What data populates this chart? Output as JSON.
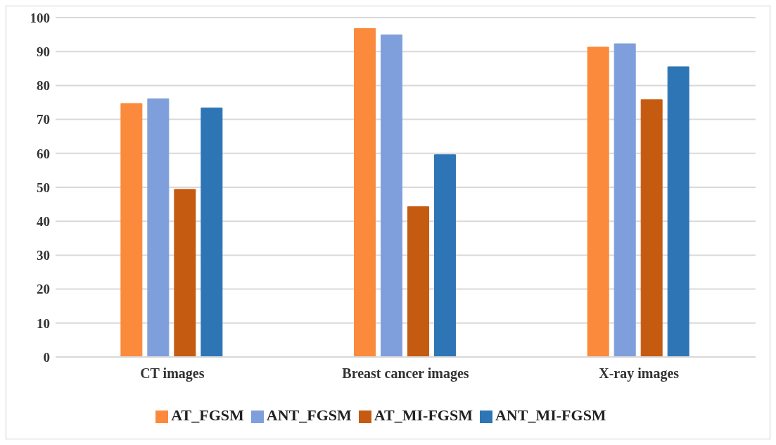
{
  "chart_data": {
    "type": "bar",
    "categories": [
      "CT images",
      "Breast cancer images",
      "X-ray images"
    ],
    "series": [
      {
        "name": "AT_FGSM",
        "color": "#fb8a3c",
        "values": [
          74.7,
          96.8,
          91.3
        ]
      },
      {
        "name": "ANT_FGSM",
        "color": "#7f9fdc",
        "values": [
          76.1,
          94.9,
          92.3
        ]
      },
      {
        "name": "AT_MI-FGSM",
        "color": "#c55a11",
        "values": [
          49.4,
          44.3,
          75.8
        ]
      },
      {
        "name": "ANT_MI-FGSM",
        "color": "#2e75b6",
        "values": [
          73.4,
          59.6,
          85.5
        ]
      }
    ],
    "ylim": [
      0,
      100
    ],
    "yticks": [
      0,
      10,
      20,
      30,
      40,
      50,
      60,
      70,
      80,
      90,
      100
    ],
    "grid": "y",
    "legend": "bottom"
  }
}
